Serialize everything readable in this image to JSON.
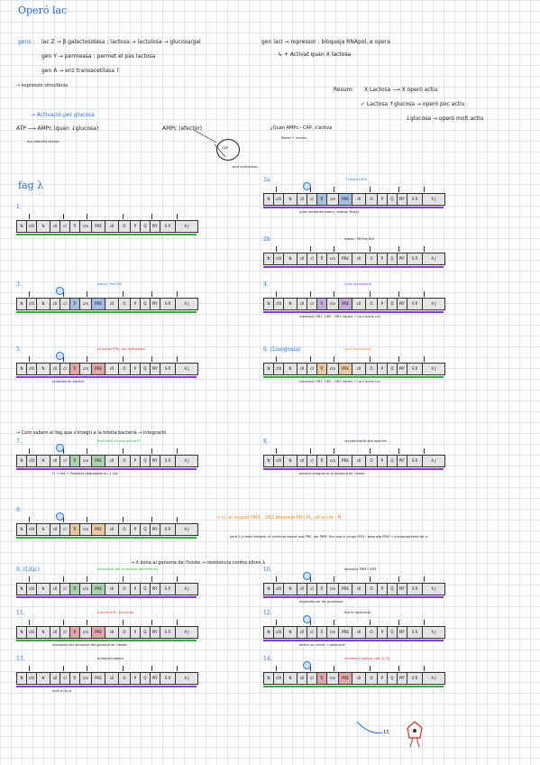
{
  "header": {
    "title": "Operó lac",
    "gens_label": "gens :",
    "gens": [
      "lac Z → β galactosidasa : lactosa → lactulosa → glucosa/gal",
      "gen Y → permeasa : permet el pas lactosa",
      "gen A → enz transacetilasa ?"
    ],
    "lacI": "gen lacI → repressor : bloqueja RNApol, ø opera",
    "lacI_sub": "↳ + Activat quan X lactosa",
    "expression": "→ expressió simultània"
  },
  "resum": {
    "label": "Resum:",
    "lines": [
      "X Lactosa ⟶ X operó actiu",
      "✓ Lactosa ↑glucosa → operó poc actiu",
      "↓glucosa → operó molt actiu"
    ]
  },
  "glucose": {
    "heading": "→ Activació per glucosa",
    "atp": "ATP ⟶ AMPc (quan ↓glucosa)",
    "ampc": "AMPc (efector)",
    "cap": "CAP",
    "adenilat": "enz adenilat ciclasa",
    "activador": "prot activadora",
    "quan": "¿Quan AMPc - CAP, s'activa",
    "inactive": "Model + inactiu"
  },
  "fag": {
    "title": "fag λ",
    "genes": [
      "N",
      "cIII",
      "N",
      "cII",
      "cI",
      "Tr",
      "cro",
      "PRE",
      "cII",
      "O",
      "P",
      "Q",
      "PR'",
      "S R",
      "A J"
    ],
    "diagrams": [
      {
        "label": "1.",
        "note": "",
        "note2": ""
      },
      {
        "label": "2a",
        "note": "→ traducció N",
        "note2": "(prot antiterminadora, retarda NusA)"
      },
      {
        "label": "2b",
        "note": "transc. PR fins tR2",
        "note2": ""
      },
      {
        "label": "3.",
        "note": "transc. fins tR2",
        "note2": ""
      },
      {
        "label": "4.",
        "note": "(prot repressora)",
        "note2": "repressor OR1, OR2 : OR3 repres → no s'uneix cro"
      },
      {
        "label": "5.",
        "note": "cII activa PRE, per activadora",
        "note2": "proteàsa de bacteri"
      },
      {
        "label": "6. (Lisogènia)",
        "note": "(prot repressora)",
        "note2": "repressor OR1, OR2 : OR3 repres → no s'uneix cro"
      },
      {
        "label": "7.",
        "note": "Prot codif. cII que activa PI",
        "note2": "O → cIIa + Protèasa degradada en ↓ nut"
      },
      {
        "label": "8.",
        "note": "recombinació site-specific",
        "note2": "permet integrar-se al genoma de l'hoste"
      },
      {
        "label": "8.",
        "note": "",
        "note2": ""
      },
      {
        "label": "9. (Lític)",
        "note": "desactivat per proteases bacterianes",
        "note2": ""
      },
      {
        "label": "10.",
        "note": "bloqueja PRM i OR3",
        "note2": "degradat per les proteases"
      },
      {
        "label": "11.",
        "note": "s'uneix a PL, el tancaa",
        "note2": "necessari per activació del genoma de l'hoste"
      },
      {
        "label": "12.",
        "note": "Ara la replicació",
        "note2": "forma un cercle → replicació"
      },
      {
        "label": "13.",
        "note": "antiterminadora",
        "note2": "unió a Qnut"
      },
      {
        "label": "14.",
        "note": "necessari replicar cap (S, R)",
        "note2": ""
      }
    ],
    "lysogen_note": "→ Com sabem el fag que s'integri a la hòstia bacterià → integració",
    "cI_text": "→ cI, al ocupar OR3 : OR2 bloqueja PR i PL, altra cro : N",
    "lambda_text": "→ λ dona al genoma de l'hoste → resistència contra altres λ",
    "pol_text": "però λ ja està integrat, el continua bisant que PRE, per PRM, fins que cI ocupa OR3 : bloqueja PRM → s'autorepressió de cI",
    "fifteen": "15."
  }
}
